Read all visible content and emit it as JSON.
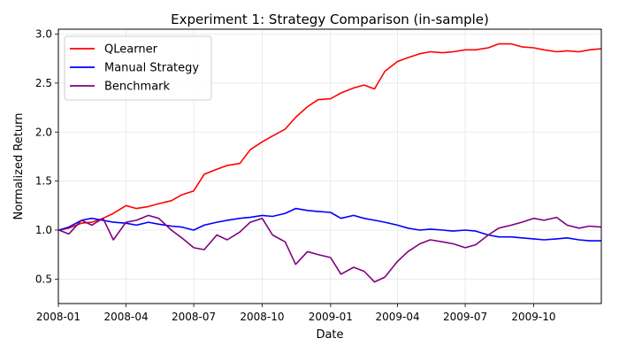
{
  "chart_data": {
    "type": "line",
    "title": "Experiment 1: Strategy Comparison (in-sample)",
    "xlabel": "Date",
    "ylabel": "Normalized Return",
    "x_ticks": [
      "2008-01",
      "2008-04",
      "2008-07",
      "2008-10",
      "2009-01",
      "2009-04",
      "2009-07",
      "2009-10"
    ],
    "x_tick_dates": [
      "2008-01-01",
      "2008-04-01",
      "2008-07-01",
      "2008-10-01",
      "2009-01-01",
      "2009-04-01",
      "2009-07-01",
      "2009-10-01"
    ],
    "y_ticks": [
      "0.5",
      "1.0",
      "1.5",
      "2.0",
      "2.5",
      "3.0"
    ],
    "y_tick_values": [
      0.5,
      1.0,
      1.5,
      2.0,
      2.5,
      3.0
    ],
    "xlim": [
      "2008-01-01",
      "2009-12-31"
    ],
    "ylim": [
      0.25,
      3.05
    ],
    "grid": true,
    "legend_position": "upper left",
    "x": [
      "2008-01-02",
      "2008-01-15",
      "2008-02-01",
      "2008-02-15",
      "2008-03-01",
      "2008-03-15",
      "2008-04-01",
      "2008-04-15",
      "2008-05-01",
      "2008-05-15",
      "2008-06-01",
      "2008-06-15",
      "2008-07-01",
      "2008-07-15",
      "2008-08-01",
      "2008-08-15",
      "2008-09-01",
      "2008-09-15",
      "2008-10-01",
      "2008-10-15",
      "2008-11-01",
      "2008-11-15",
      "2008-12-01",
      "2008-12-15",
      "2009-01-01",
      "2009-01-15",
      "2009-02-01",
      "2009-02-15",
      "2009-03-01",
      "2009-03-15",
      "2009-04-01",
      "2009-04-15",
      "2009-05-01",
      "2009-05-15",
      "2009-06-01",
      "2009-06-15",
      "2009-07-01",
      "2009-07-15",
      "2009-08-01",
      "2009-08-15",
      "2009-09-01",
      "2009-09-15",
      "2009-10-01",
      "2009-10-15",
      "2009-11-01",
      "2009-11-15",
      "2009-12-01",
      "2009-12-15",
      "2009-12-31"
    ],
    "series": [
      {
        "name": "QLearner",
        "color": "#ff0000",
        "values": [
          1.0,
          1.02,
          1.07,
          1.08,
          1.12,
          1.17,
          1.25,
          1.22,
          1.24,
          1.27,
          1.3,
          1.36,
          1.4,
          1.57,
          1.62,
          1.66,
          1.68,
          1.82,
          1.9,
          1.96,
          2.03,
          2.15,
          2.26,
          2.33,
          2.34,
          2.4,
          2.45,
          2.48,
          2.44,
          2.62,
          2.72,
          2.76,
          2.8,
          2.82,
          2.81,
          2.82,
          2.84,
          2.84,
          2.86,
          2.9,
          2.9,
          2.87,
          2.86,
          2.84,
          2.82,
          2.83,
          2.82,
          2.84,
          2.85
        ]
      },
      {
        "name": "Manual Strategy",
        "color": "#0000ff",
        "values": [
          1.0,
          1.03,
          1.1,
          1.12,
          1.1,
          1.08,
          1.07,
          1.05,
          1.08,
          1.06,
          1.04,
          1.03,
          1.0,
          1.05,
          1.08,
          1.1,
          1.12,
          1.13,
          1.15,
          1.14,
          1.17,
          1.22,
          1.2,
          1.19,
          1.18,
          1.12,
          1.15,
          1.12,
          1.1,
          1.08,
          1.05,
          1.02,
          1.0,
          1.01,
          1.0,
          0.99,
          1.0,
          0.99,
          0.95,
          0.93,
          0.93,
          0.92,
          0.91,
          0.9,
          0.91,
          0.92,
          0.9,
          0.89,
          0.89
        ]
      },
      {
        "name": "Benchmark",
        "color": "#800080",
        "values": [
          1.0,
          0.96,
          1.1,
          1.05,
          1.12,
          0.9,
          1.08,
          1.1,
          1.15,
          1.12,
          1.0,
          0.92,
          0.82,
          0.8,
          0.95,
          0.9,
          0.98,
          1.08,
          1.12,
          0.95,
          0.88,
          0.65,
          0.78,
          0.75,
          0.72,
          0.55,
          0.62,
          0.58,
          0.47,
          0.52,
          0.68,
          0.78,
          0.86,
          0.9,
          0.88,
          0.86,
          0.82,
          0.85,
          0.95,
          1.02,
          1.05,
          1.08,
          1.12,
          1.1,
          1.13,
          1.05,
          1.02,
          1.04,
          1.03
        ]
      }
    ]
  }
}
